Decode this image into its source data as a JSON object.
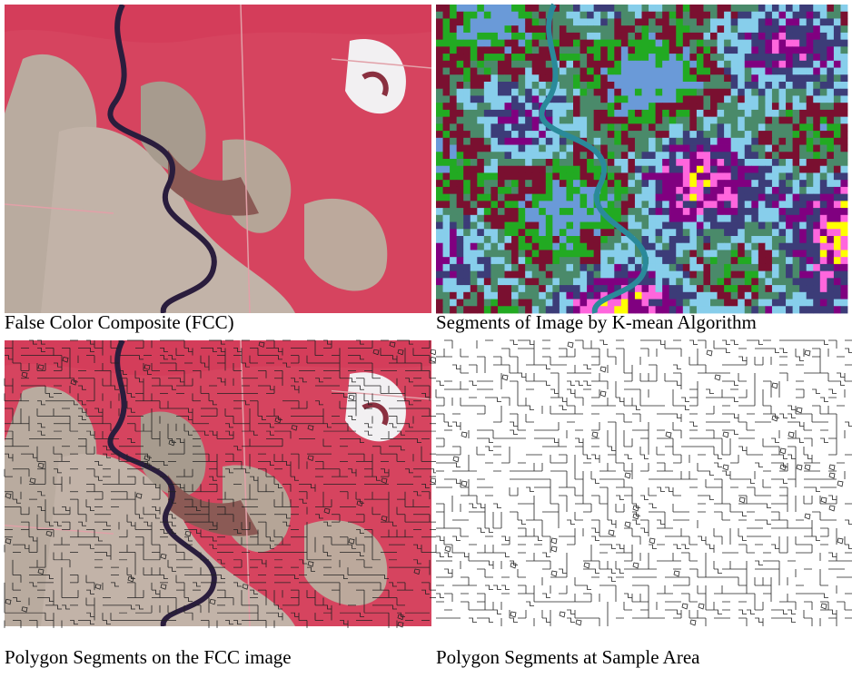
{
  "figure": {
    "panels": [
      {
        "caption": "False Color Composite (FCC)"
      },
      {
        "caption": "Segments of Image by K-mean Algorithm"
      },
      {
        "caption": "Polygon Segments on the FCC image"
      },
      {
        "caption": "Polygon Segments at Sample Area"
      }
    ]
  }
}
